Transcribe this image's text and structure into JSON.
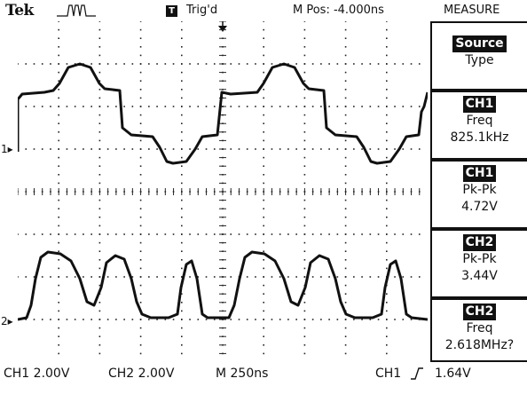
{
  "header": {
    "brand": "Tek",
    "acquire_icon": "run-pulse-icon",
    "trigger_badge": "T",
    "trigger_status": "Trig'd",
    "main_position": "M Pos: -4.000ns",
    "menu_title": "MEASURE"
  },
  "measure_menu": {
    "source_button": "Source",
    "type_label": "Type",
    "slots": [
      {
        "source": "CH1",
        "type": "Freq",
        "value": "825.1kHz"
      },
      {
        "source": "CH1",
        "type": "Pk-Pk",
        "value": "4.72V"
      },
      {
        "source": "CH2",
        "type": "Pk-Pk",
        "value": "3.44V"
      },
      {
        "source": "CH2",
        "type": "Freq",
        "value": "2.618MHz?"
      }
    ]
  },
  "channel_markers": {
    "ch1": "1",
    "ch2": "2"
  },
  "footer": {
    "ch1_scale": "CH1 2.00V",
    "ch2_scale": "CH2 2.00V",
    "timebase": "M 250ns",
    "trigger_source": "CH1",
    "trigger_edge_icon": "rising-edge-icon",
    "trigger_level": "1.64V"
  },
  "colors": {
    "trace": "#111111",
    "background": "#ffffff"
  }
}
